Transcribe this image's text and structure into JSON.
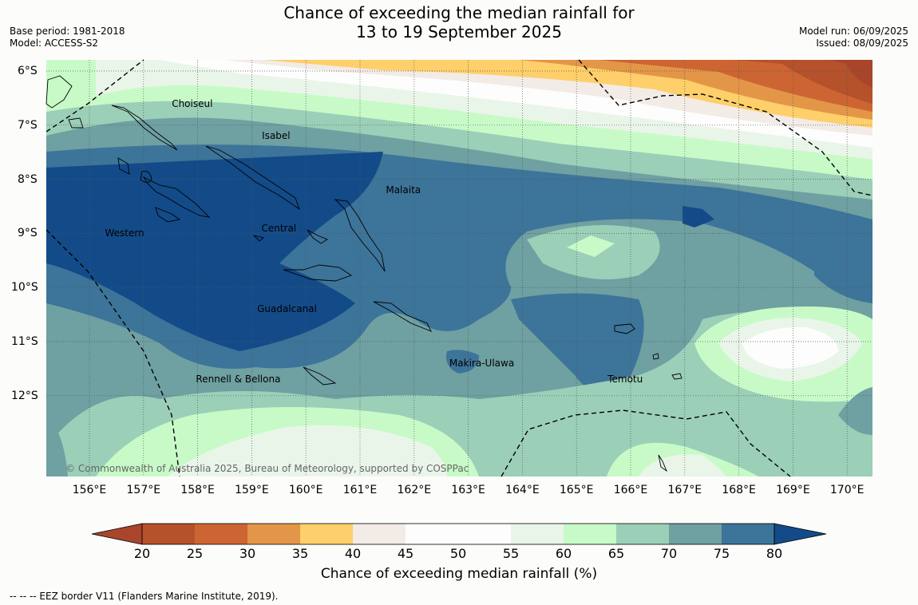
{
  "title_line1": "Chance of exceeding the median rainfall for",
  "title_line2": "13 to 19 September 2025",
  "base_period": "Base period: 1981-2018",
  "model": "Model: ACCESS-S2",
  "model_run": "Model run: 06/09/2025",
  "issued": "Issued: 08/09/2025",
  "copyright": "© Commonwealth of Australia 2025, Bureau of Meteorology, supported by COSPPac",
  "footer": "--  --  -- EEZ border V11 (Flanders Marine Institute, 2019).",
  "lon_labels": [
    "156°E",
    "157°E",
    "158°E",
    "159°E",
    "160°E",
    "161°E",
    "162°E",
    "163°E",
    "164°E",
    "165°E",
    "166°E",
    "167°E",
    "168°E",
    "169°E",
    "170°E"
  ],
  "lat_labels": [
    "6°S",
    "7°S",
    "8°S",
    "9°S",
    "10°S",
    "11°S",
    "12°S"
  ],
  "provinces": [
    {
      "name": "Choiseul",
      "lon": 157.9,
      "lat": -6.6
    },
    {
      "name": "Isabel",
      "lon": 159.45,
      "lat": -7.2
    },
    {
      "name": "Malaita",
      "lon": 161.8,
      "lat": -8.2
    },
    {
      "name": "Western",
      "lon": 156.65,
      "lat": -9.0
    },
    {
      "name": "Central",
      "lon": 159.5,
      "lat": -8.9
    },
    {
      "name": "Guadalcanal",
      "lon": 159.65,
      "lat": -10.4
    },
    {
      "name": "Makira-Ulawa",
      "lon": 163.25,
      "lat": -11.4
    },
    {
      "name": "Rennell & Bellona",
      "lon": 158.75,
      "lat": -11.7
    },
    {
      "name": "Temotu",
      "lon": 165.9,
      "lat": -11.7
    }
  ],
  "colorbar": {
    "label": "Chance of exceeding median rainfall (%)",
    "ticks": [
      "20",
      "25",
      "30",
      "35",
      "40",
      "45",
      "50",
      "55",
      "60",
      "65",
      "70",
      "75",
      "80"
    ],
    "colors": [
      "#a8452a",
      "#b5512b",
      "#cd6532",
      "#e39648",
      "#fecf6a",
      "#f2ebe6",
      "#fdfdfd",
      "#fdfdfd",
      "#eaf5e9",
      "#c8fac8",
      "#9bcfb7",
      "#6fa0a2",
      "#3d7499",
      "#134b89"
    ]
  }
}
